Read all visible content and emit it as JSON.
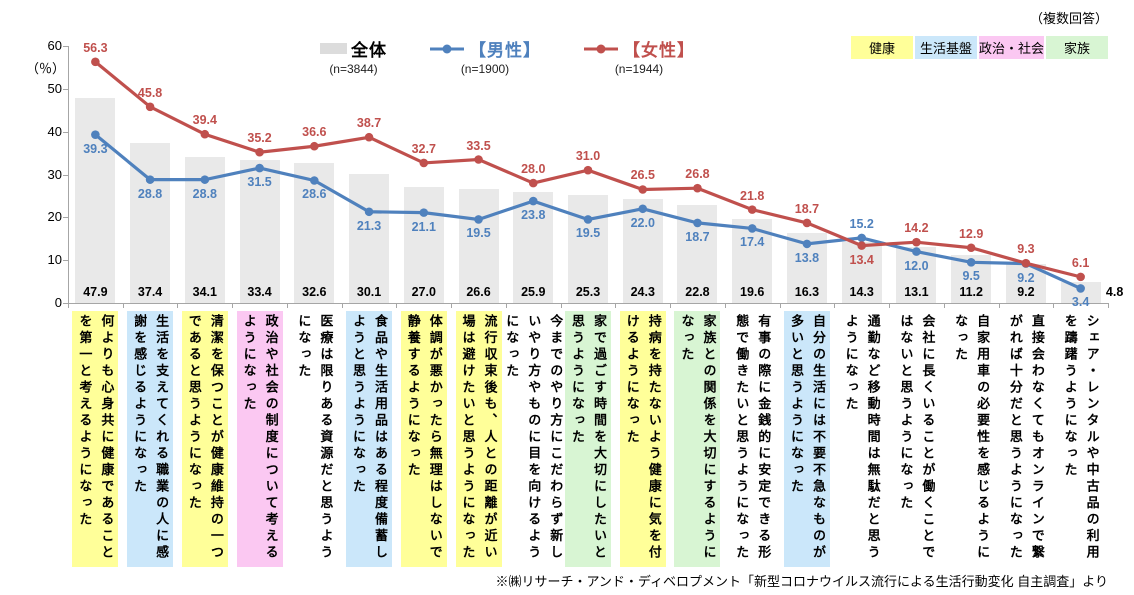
{
  "meta": {
    "multiple_answer_note": "（複数回答）",
    "source": "※㈱リサーチ・アンド・ディベロプメント「新型コロナウイルス流行による生活行動変化 自主調査」より"
  },
  "legend": {
    "series": [
      {
        "name": "全体",
        "n": "(n=3844)",
        "color": "#dcdcdc",
        "type": "bar"
      },
      {
        "name": "【男性】",
        "n": "(n=1900)",
        "color": "#4f81bd",
        "type": "line"
      },
      {
        "name": "【女性】",
        "n": "(n=1944)",
        "color": "#c0504d",
        "type": "line"
      }
    ],
    "groups": [
      {
        "label": "健康",
        "color": "#ffff99"
      },
      {
        "label": "生活基盤",
        "color": "#cbe7fa"
      },
      {
        "label": "政治・社会",
        "color": "#fbc8f2"
      },
      {
        "label": "家族",
        "color": "#d8f5d3"
      }
    ]
  },
  "chart_data": {
    "type": "bar+line",
    "title": "",
    "ylabel": "（％）",
    "ylim": [
      0,
      60
    ],
    "yticks": [
      0,
      10,
      20,
      30,
      40,
      50,
      60
    ],
    "grid": false,
    "legend_position": "top",
    "bar_color": "#e9e9e9",
    "male_color": "#4f81bd",
    "female_color": "#c0504d",
    "categories": [
      {
        "label": "何よりも心身共に健康であることを第一と考えるようになった",
        "group": "健康"
      },
      {
        "label": "生活を支えてくれる職業の人に感謝を感じるようになった",
        "group": "生活基盤"
      },
      {
        "label": "清潔を保つことが健康維持の一つであると思うようになった",
        "group": "健康"
      },
      {
        "label": "政治や社会の制度について考えるようになった",
        "group": "政治・社会"
      },
      {
        "label": "医療は限りある資源だと思うようになった",
        "group": ""
      },
      {
        "label": "食品や生活用品はある程度備蓄しようと思うようになった",
        "group": "生活基盤"
      },
      {
        "label": "体調が悪かったら無理はしないで静養するようになった",
        "group": "健康"
      },
      {
        "label": "流行収束後も、人との距離が近い場は避けたいと思うようになった",
        "group": "健康"
      },
      {
        "label": "今までのやり方にこだわらず新しいやり方やものに目を向けるようになった",
        "group": ""
      },
      {
        "label": "家で過ごす時間を大切にしたいと思うようになった",
        "group": "家族"
      },
      {
        "label": "持病を持たないよう健康に気を付けるようになった",
        "group": "健康"
      },
      {
        "label": "家族との関係を大切にするようになった",
        "group": "家族"
      },
      {
        "label": "有事の際に金銭的に安定できる形態で働きたいと思うようになった",
        "group": ""
      },
      {
        "label": "自分の生活には不要不急なものが多いと思うようになった",
        "group": "生活基盤"
      },
      {
        "label": "通勤など移動時間は無駄だと思うようになった",
        "group": ""
      },
      {
        "label": "会社に長くいることが働くことではないと思うようになった",
        "group": ""
      },
      {
        "label": "自家用車の必要性を感じるようになった",
        "group": ""
      },
      {
        "label": "直接会わなくてもオンラインで繋がれば十分だと思うようになった",
        "group": ""
      },
      {
        "label": "シェア・レンタルや中古品の利用を躊躇うようになった",
        "group": ""
      }
    ],
    "series": [
      {
        "name": "全体",
        "type": "bar",
        "values": [
          47.9,
          37.4,
          34.1,
          33.4,
          32.6,
          30.1,
          27.0,
          26.6,
          25.9,
          25.3,
          24.3,
          22.8,
          19.6,
          16.3,
          14.3,
          13.1,
          11.2,
          9.2,
          4.8
        ]
      },
      {
        "name": "【男性】",
        "type": "line",
        "values": [
          39.3,
          28.8,
          28.8,
          31.5,
          28.6,
          21.3,
          21.1,
          19.5,
          23.8,
          19.5,
          22.0,
          18.7,
          17.4,
          13.8,
          15.2,
          12.0,
          9.5,
          9.2,
          3.4
        ]
      },
      {
        "name": "【女性】",
        "type": "line",
        "values": [
          56.3,
          45.8,
          39.4,
          35.2,
          36.6,
          38.7,
          32.7,
          33.5,
          28.0,
          31.0,
          26.5,
          26.8,
          21.8,
          18.7,
          13.4,
          14.2,
          12.9,
          9.3,
          6.1
        ]
      }
    ]
  }
}
